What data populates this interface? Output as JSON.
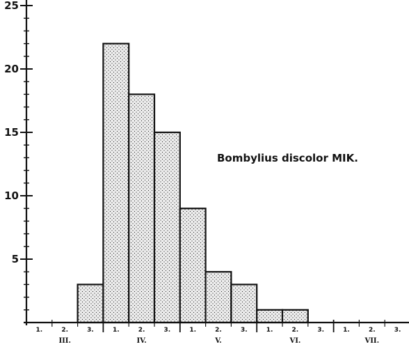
{
  "chart_data": {
    "type": "bar",
    "title": "Bombylius discolor MIK.",
    "xlabel": "",
    "ylabel": "",
    "ylim": [
      0,
      25
    ],
    "y_major_ticks": [
      5,
      10,
      15,
      20,
      25
    ],
    "legend": "none",
    "grid": false,
    "categories": [
      "III. 1",
      "III. 2",
      "III. 3",
      "IV. 1",
      "IV. 2",
      "IV. 3",
      "V. 1",
      "V. 2",
      "V. 3",
      "VI. 1",
      "VI. 2",
      "VI. 3",
      "VII. 1",
      "VII. 2",
      "VII. 3"
    ],
    "values": [
      0,
      0,
      3,
      22,
      18,
      15,
      9,
      4,
      3,
      1,
      1,
      0,
      0,
      0,
      0
    ],
    "decade_labels": [
      "1.",
      "2.",
      "3.",
      "1.",
      "2.",
      "3.",
      "1.",
      "2.",
      "3.",
      "1.",
      "2.",
      "3.",
      "1.",
      "2.",
      "3."
    ],
    "months": [
      {
        "label": "III.",
        "start": 0
      },
      {
        "label": "IV.",
        "start": 3
      },
      {
        "label": "V.",
        "start": 6
      },
      {
        "label": "VI.",
        "start": 9
      },
      {
        "label": "VII.",
        "start": 12
      }
    ]
  }
}
